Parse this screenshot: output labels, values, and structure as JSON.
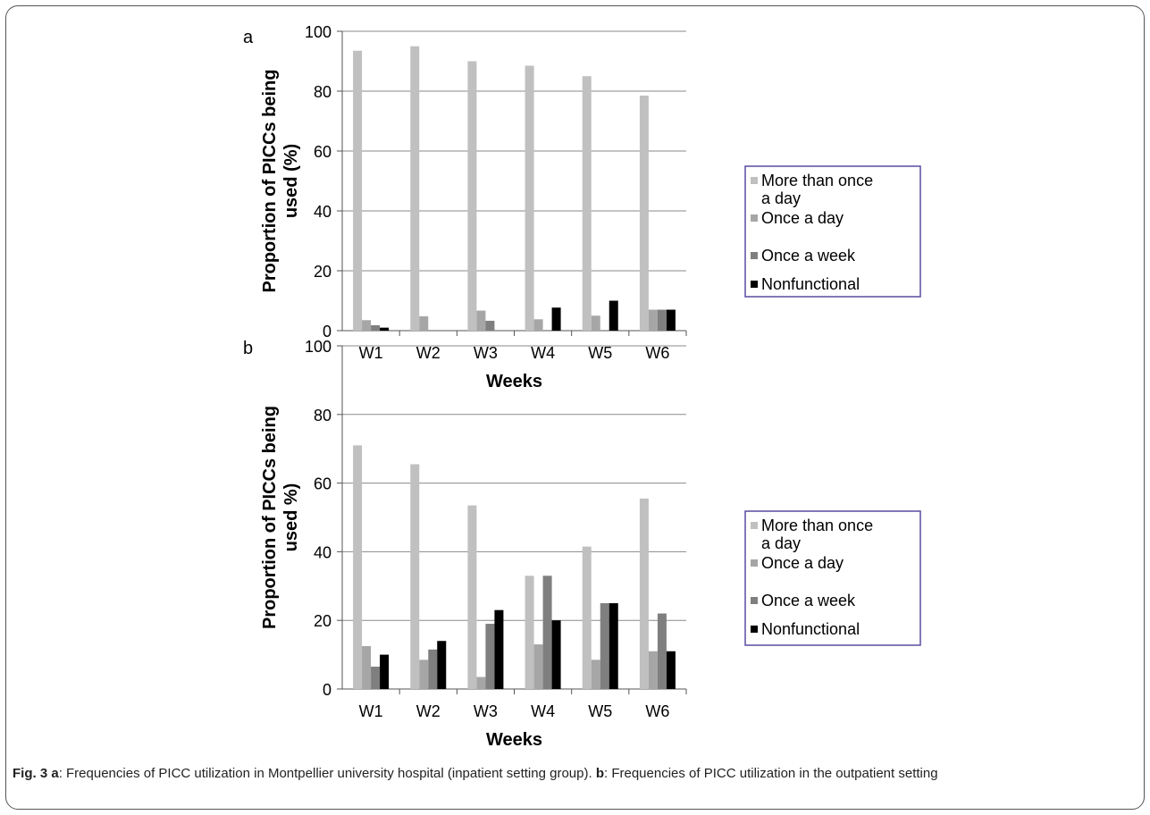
{
  "figure": {
    "caption": {
      "fig_label": "Fig. 3",
      "part_a_label": "a",
      "part_a_text": ": Frequencies of PICC utilization in Montpellier university hospital (inpatient setting group). ",
      "part_b_label": "b",
      "part_b_text": ": Frequencies of PICC utilization in the outpatient setting"
    }
  },
  "chart_data": [
    {
      "type": "bar",
      "panel_label": "a",
      "title": "",
      "xlabel": "Weeks",
      "ylabel_line1": "Proportion of PICCs being",
      "ylabel_line2": "used (%)",
      "ylim": [
        0,
        100
      ],
      "yticks": [
        "0",
        "20",
        "40",
        "60",
        "80",
        "100"
      ],
      "grid": true,
      "legend_position": "right",
      "categories": [
        "W1",
        "W2",
        "W3",
        "W4",
        "W5",
        "W6"
      ],
      "series": [
        {
          "name_line1": "More than once",
          "name_line2": "a day",
          "color": "#c0c0c0",
          "values": [
            93.5,
            95,
            90,
            88.5,
            85,
            78.5
          ]
        },
        {
          "name_line1": "Once a day",
          "name_line2": "",
          "color": "#a6a6a6",
          "values": [
            3.5,
            4.8,
            6.7,
            3.8,
            5,
            7
          ]
        },
        {
          "name_line1": "Once a week",
          "name_line2": "",
          "color": "#7f7f7f",
          "values": [
            1.8,
            0,
            3.3,
            0,
            0,
            7
          ]
        },
        {
          "name_line1": "Nonfunctional",
          "name_line2": "",
          "color": "#000000",
          "values": [
            1,
            0,
            0,
            7.7,
            10,
            7
          ]
        }
      ]
    },
    {
      "type": "bar",
      "panel_label": "b",
      "title": "",
      "xlabel": "Weeks",
      "ylabel_line1": "Proportion of PICCs being",
      "ylabel_line2": "used %)",
      "ylim": [
        0,
        100
      ],
      "yticks": [
        "0",
        "20",
        "40",
        "60",
        "80",
        "100"
      ],
      "grid": true,
      "legend_position": "right",
      "categories": [
        "W1",
        "W2",
        "W3",
        "W4",
        "W5",
        "W6"
      ],
      "series": [
        {
          "name_line1": "More than once",
          "name_line2": "a day",
          "color": "#c0c0c0",
          "values": [
            71,
            65.5,
            53.5,
            33,
            41.5,
            55.5
          ]
        },
        {
          "name_line1": "Once a day",
          "name_line2": "",
          "color": "#a6a6a6",
          "values": [
            12.5,
            8.5,
            3.5,
            13,
            8.5,
            11
          ]
        },
        {
          "name_line1": "Once a week",
          "name_line2": "",
          "color": "#7f7f7f",
          "values": [
            6.5,
            11.5,
            19,
            33,
            25,
            22
          ]
        },
        {
          "name_line1": "Nonfunctional",
          "name_line2": "",
          "color": "#000000",
          "values": [
            10,
            14,
            23,
            20,
            25,
            11
          ]
        }
      ]
    }
  ]
}
